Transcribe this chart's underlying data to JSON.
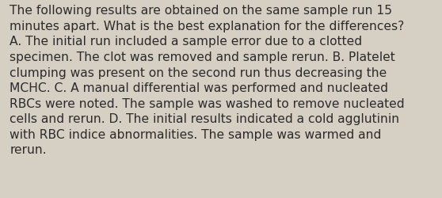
{
  "background_color": "#d6d0c4",
  "text_color": "#2b2b2b",
  "lines": [
    "The following results are obtained on the same sample run 15",
    "minutes apart. What is the best explanation for the differences?",
    "A. The initial run included a sample error due to a clotted",
    "specimen. The clot was removed and sample rerun. B. Platelet",
    "clumping was present on the second run thus decreasing the",
    "MCHC. C. A manual differential was performed and nucleated",
    "RBCs were noted. The sample was washed to remove nucleated",
    "cells and rerun. D. The initial results indicated a cold agglutinin",
    "with RBC indice abnormalities. The sample was warmed and",
    "rerun."
  ],
  "font_size": 11.2,
  "fig_width": 5.58,
  "fig_height": 2.51,
  "dpi": 100
}
